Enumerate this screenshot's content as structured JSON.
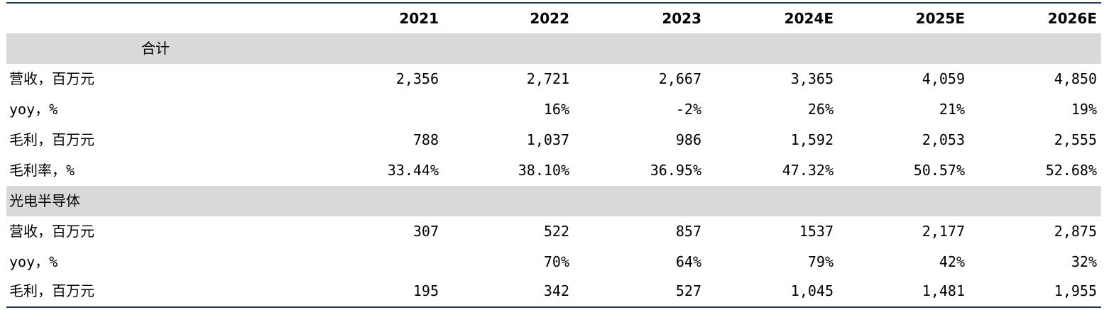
{
  "columns": [
    "2021",
    "2022",
    "2023",
    "2024E",
    "2025E",
    "2026E"
  ],
  "rows": [
    {
      "type": "section",
      "label": "合计",
      "centered": true
    },
    {
      "type": "data",
      "label": "营收，百万元",
      "values": [
        "2,356",
        "2,721",
        "2,667",
        "3,365",
        "4,059",
        "4,850"
      ]
    },
    {
      "type": "data",
      "label": "yoy，%",
      "values": [
        "",
        "16%",
        "-2%",
        "26%",
        "21%",
        "19%"
      ]
    },
    {
      "type": "data",
      "label": "毛利，百万元",
      "values": [
        "788",
        "1,037",
        "986",
        "1,592",
        "2,053",
        "2,555"
      ]
    },
    {
      "type": "data",
      "label": "毛利率，%",
      "values": [
        "33.44%",
        "38.10%",
        "36.95%",
        "47.32%",
        "50.57%",
        "52.68%"
      ]
    },
    {
      "type": "section",
      "label": "光电半导体",
      "centered": false
    },
    {
      "type": "data",
      "label": "营收，百万元",
      "values": [
        "307",
        "522",
        "857",
        "1537",
        "2,177",
        "2,875"
      ]
    },
    {
      "type": "data",
      "label": "yoy，%",
      "values": [
        "",
        "70%",
        "64%",
        "79%",
        "42%",
        "32%"
      ]
    },
    {
      "type": "data",
      "label": "毛利，百万元",
      "values": [
        "195",
        "342",
        "527",
        "1,045",
        "1,481",
        "1,955"
      ]
    }
  ]
}
